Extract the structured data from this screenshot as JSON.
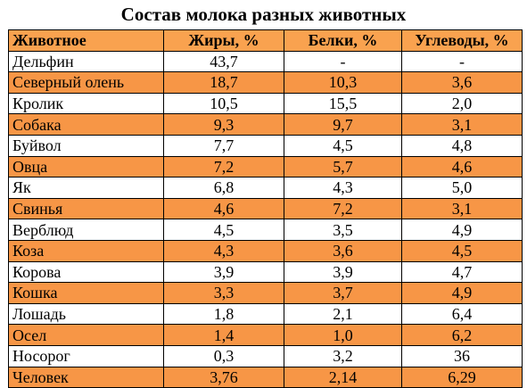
{
  "title": "Состав молока разных животных",
  "colors": {
    "header_fill": "#f9a24f",
    "shaded_row_fill": "#f79646",
    "plain_row_fill": "#ffffff"
  },
  "table": {
    "headers": [
      "Животное",
      "Жиры, %",
      "Белки, %",
      "Углеводы, %"
    ],
    "rows": [
      [
        "Дельфин",
        "43,7",
        "-",
        "-"
      ],
      [
        "Северный олень",
        "18,7",
        "10,3",
        "3,6"
      ],
      [
        "Кролик",
        "10,5",
        "15,5",
        "2,0"
      ],
      [
        "Собака",
        "9,3",
        "9,7",
        "3,1"
      ],
      [
        "Буйвол",
        "7,7",
        "4,5",
        "4,8"
      ],
      [
        "Овца",
        "7,2",
        "5,7",
        "4,6"
      ],
      [
        "Як",
        "6,8",
        "4,3",
        "5,0"
      ],
      [
        "Свинья",
        "4,6",
        "7,2",
        "3,1"
      ],
      [
        "Верблюд",
        "4,5",
        "3,5",
        "4,9"
      ],
      [
        "Коза",
        "4,3",
        "3,6",
        "4,5"
      ],
      [
        "Корова",
        "3,9",
        "3,9",
        "4,7"
      ],
      [
        "Кошка",
        "3,3",
        "3,7",
        "4,9"
      ],
      [
        "Лошадь",
        "1,8",
        "2,1",
        "6,4"
      ],
      [
        "Осел",
        "1,4",
        "1,0",
        "6,2"
      ],
      [
        "Носорог",
        "0,3",
        "3,2",
        "36"
      ],
      [
        "Человек",
        "3,76",
        "2,14",
        "6,29"
      ]
    ]
  }
}
